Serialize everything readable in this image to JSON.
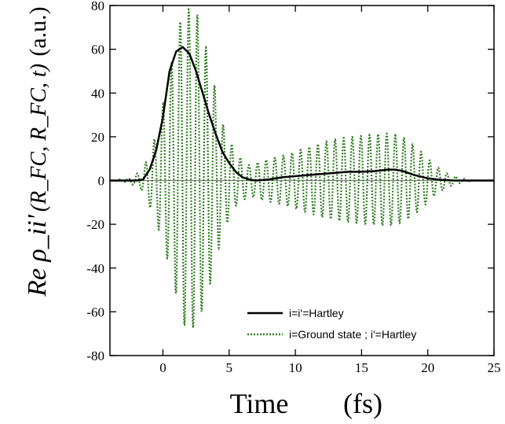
{
  "chart_data": {
    "type": "line",
    "title": "",
    "xlabel": "Time",
    "xunit": "(fs)",
    "ylabel_main": "Re ρ_ii'",
    "ylabel_args": "(R_FC, R_FC, t)",
    "ylabel_unit": "(a.u.)",
    "xlim": [
      -4,
      25
    ],
    "ylim": [
      -80,
      80
    ],
    "xticks": [
      0,
      5,
      10,
      15,
      20,
      25
    ],
    "yticks": [
      -80,
      -60,
      -40,
      -20,
      0,
      20,
      40,
      60,
      80
    ],
    "grid": false,
    "legend_position": "bottom-right",
    "zero_line_color": "#808080",
    "series": [
      {
        "name": "i=i'=Hartley",
        "color": "#000000",
        "style": "solid",
        "x": [
          -4,
          -2,
          -1.5,
          -1,
          -0.5,
          0,
          0.5,
          1,
          1.5,
          2,
          2.5,
          3,
          3.5,
          4,
          4.5,
          5,
          5.5,
          6,
          6.5,
          7,
          8,
          9,
          10,
          11,
          12,
          13,
          14,
          15,
          16,
          17,
          17.5,
          18,
          19,
          20,
          21,
          22,
          23,
          25
        ],
        "y": [
          0,
          0,
          0.5,
          5,
          14,
          29,
          50,
          59,
          61,
          58,
          50,
          40,
          30,
          21,
          13,
          8,
          4,
          1.5,
          0.5,
          0,
          0.5,
          1.5,
          2,
          2.5,
          3,
          3.5,
          4,
          4,
          4.3,
          5,
          5,
          4.5,
          2.5,
          1,
          0.3,
          0,
          0,
          0
        ]
      },
      {
        "name": "i=Ground state ; i'=Hartley",
        "color": "#2e7d1f",
        "style": "dotted",
        "envelope_x": [
          -4,
          -2.5,
          -1.5,
          -0.5,
          0.5,
          1.5,
          2.5,
          3.5,
          4.5,
          5.5,
          6.5,
          7.5,
          9,
          10.5,
          12,
          13.5,
          15,
          16.5,
          17.5,
          18.5,
          19.5,
          20.5,
          21.5,
          22.5,
          23.5,
          25
        ],
        "envelope_y": [
          0,
          1,
          5,
          20,
          44,
          72,
          73,
          52,
          25,
          12,
          7,
          9,
          11,
          14,
          17,
          19,
          20,
          21,
          21,
          18,
          13,
          7,
          3,
          1,
          0,
          0
        ],
        "period_fs": 0.65
      }
    ]
  }
}
